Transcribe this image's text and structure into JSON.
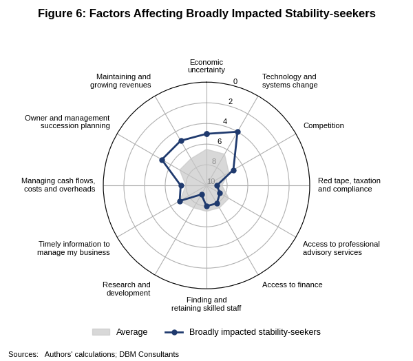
{
  "chart_data": {
    "type": "radar",
    "title": "Figure 6: Factors Affecting Broadly Impacted Stability-seekers",
    "categories": [
      "Economic\nuncertainty",
      "Technology and\nsystems change",
      "Competition",
      "Red tape, taxation\nand compliance",
      "Access to professional\nadvisory services",
      "Access to finance",
      "Finding and\nretaining skilled staff",
      "Research and\ndevelopment",
      "Timely information to\nmanage my business",
      "Managing cash flows,\ncosts and overheads",
      "Owner and management\nsuccession planning",
      "Maintaining and\ngrowing revenues"
    ],
    "series": [
      {
        "name": "Average",
        "type": "area",
        "color": "#c8c8c8",
        "values": [
          6.5,
          6.5,
          7.5,
          8.5,
          7.5,
          7.5,
          7.5,
          7.5,
          7.0,
          8.0,
          7.0,
          7.0
        ]
      },
      {
        "name": "Broadly impacted stability-seekers",
        "type": "line",
        "color": "#1f3a6e",
        "marker": "o",
        "values": [
          5.0,
          4.0,
          7.0,
          9.0,
          8.5,
          8.0,
          8.0,
          9.0,
          7.0,
          7.5,
          5.0,
          5.0
        ]
      }
    ],
    "ylim": [
      10,
      0
    ],
    "yticks": [
      0,
      2,
      4,
      6,
      8,
      10
    ],
    "grid": true,
    "legend": "lower center",
    "source": "Sources:   Authors' calculations; DBM Consultants"
  }
}
